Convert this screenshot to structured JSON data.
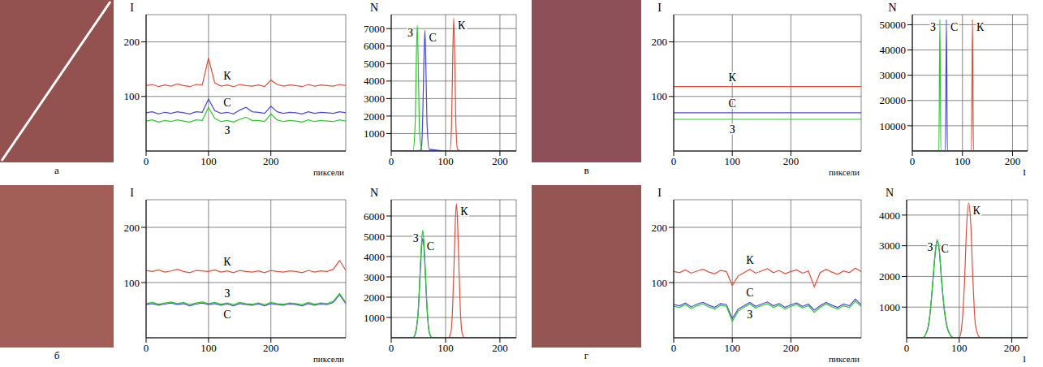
{
  "panel_labels": [
    "а",
    "б",
    "в",
    "г"
  ],
  "chart_data": [
    {
      "type": "line",
      "x_label": "пиксели",
      "y_label": "I",
      "grid": true,
      "xlim": [
        0,
        320
      ],
      "xticks": [
        0,
        100,
        200
      ],
      "ylim": [
        0,
        250
      ],
      "yticks": [
        100,
        200
      ],
      "x": [
        0,
        10,
        20,
        30,
        40,
        50,
        60,
        70,
        80,
        90,
        100,
        110,
        120,
        130,
        140,
        150,
        160,
        170,
        180,
        190,
        200,
        210,
        220,
        230,
        240,
        250,
        260,
        270,
        280,
        290,
        300,
        310,
        320
      ],
      "series": [
        {
          "name": "К",
          "color": "#d9503c",
          "values": [
            120,
            122,
            118,
            121,
            119,
            123,
            120,
            118,
            122,
            121,
            170,
            125,
            119,
            121,
            118,
            122,
            120,
            119,
            121,
            118,
            130,
            122,
            119,
            121,
            120,
            118,
            122,
            119,
            121,
            120,
            119,
            122,
            120
          ]
        },
        {
          "name": "С",
          "color": "#4a4ad0",
          "values": [
            70,
            72,
            68,
            71,
            69,
            72,
            70,
            68,
            72,
            71,
            95,
            74,
            69,
            71,
            68,
            75,
            80,
            72,
            71,
            69,
            82,
            72,
            69,
            71,
            70,
            68,
            72,
            69,
            71,
            70,
            69,
            72,
            70
          ]
        },
        {
          "name": "З",
          "color": "#2ec82e",
          "values": [
            55,
            57,
            53,
            56,
            54,
            57,
            55,
            53,
            57,
            56,
            80,
            60,
            54,
            56,
            53,
            58,
            62,
            56,
            56,
            54,
            68,
            57,
            54,
            56,
            55,
            53,
            57,
            54,
            56,
            55,
            54,
            57,
            55
          ]
        }
      ]
    },
    {
      "type": "line",
      "y_label": "N",
      "grid": true,
      "xlim": [
        0,
        230
      ],
      "xticks": [
        0,
        100,
        200
      ],
      "ylim": [
        0,
        7800
      ],
      "yticks": [
        1000,
        2000,
        3000,
        4000,
        5000,
        6000,
        7000
      ],
      "x": [
        0,
        40,
        44,
        46,
        48,
        50,
        52,
        56,
        58,
        60,
        62,
        64,
        66,
        70,
        108,
        111,
        113,
        115,
        117,
        119,
        122,
        130,
        230
      ],
      "series": [
        {
          "name": "К",
          "color": "#d9503c",
          "values": [
            0,
            0,
            0,
            0,
            0,
            0,
            0,
            0,
            0,
            0,
            0,
            0,
            0,
            0,
            0,
            1500,
            5000,
            7600,
            5000,
            1500,
            100,
            0,
            0
          ]
        },
        {
          "name": "С",
          "color": "#4a4ad0",
          "values": [
            0,
            0,
            0,
            0,
            0,
            0,
            0,
            300,
            2000,
            5000,
            6900,
            4500,
            1500,
            100,
            0,
            0,
            0,
            0,
            0,
            0,
            0,
            0,
            0
          ]
        },
        {
          "name": "З",
          "color": "#2ec82e",
          "values": [
            0,
            0,
            1500,
            5000,
            7200,
            4500,
            1200,
            100,
            0,
            0,
            0,
            0,
            0,
            0,
            0,
            0,
            0,
            0,
            0,
            0,
            0,
            0,
            0
          ]
        }
      ]
    },
    {
      "type": "line",
      "x_label": "пиксели",
      "y_label": "I",
      "grid": true,
      "xlim": [
        0,
        320
      ],
      "xticks": [
        0,
        100,
        200
      ],
      "ylim": [
        0,
        250
      ],
      "yticks": [
        100,
        200
      ],
      "x": [
        0,
        10,
        20,
        30,
        40,
        50,
        60,
        70,
        80,
        90,
        100,
        110,
        120,
        130,
        140,
        150,
        160,
        170,
        180,
        190,
        200,
        210,
        220,
        230,
        240,
        250,
        260,
        270,
        280,
        290,
        300,
        310,
        320
      ],
      "series": [
        {
          "name": "К",
          "color": "#d9503c",
          "values": [
            122,
            120,
            123,
            119,
            121,
            124,
            120,
            118,
            122,
            121,
            120,
            123,
            119,
            121,
            118,
            122,
            120,
            119,
            121,
            118,
            122,
            120,
            119,
            121,
            120,
            118,
            122,
            119,
            121,
            120,
            124,
            140,
            122
          ]
        },
        {
          "name": "С",
          "color": "#4a4ad0",
          "values": [
            60,
            62,
            59,
            61,
            63,
            60,
            62,
            58,
            61,
            63,
            60,
            62,
            59,
            61,
            58,
            62,
            60,
            59,
            61,
            58,
            62,
            60,
            59,
            61,
            60,
            58,
            62,
            59,
            61,
            60,
            64,
            78,
            62
          ]
        },
        {
          "name": "З",
          "color": "#2ec82e",
          "values": [
            62,
            64,
            61,
            63,
            65,
            62,
            64,
            60,
            63,
            65,
            62,
            64,
            61,
            63,
            60,
            64,
            62,
            61,
            63,
            60,
            64,
            62,
            61,
            63,
            62,
            60,
            64,
            61,
            63,
            62,
            66,
            80,
            64
          ]
        }
      ]
    },
    {
      "type": "line",
      "y_label": "N",
      "grid": true,
      "xlim": [
        0,
        230
      ],
      "xticks": [
        0,
        100,
        200
      ],
      "ylim": [
        0,
        6800
      ],
      "yticks": [
        1000,
        2000,
        3000,
        4000,
        5000,
        6000
      ],
      "x": [
        0,
        40,
        45,
        50,
        53,
        56,
        58,
        60,
        63,
        66,
        70,
        75,
        105,
        110,
        113,
        116,
        118,
        120,
        122,
        124,
        127,
        130,
        135,
        230
      ],
      "series": [
        {
          "name": "К",
          "color": "#d9503c",
          "values": [
            0,
            0,
            0,
            0,
            0,
            0,
            0,
            0,
            0,
            0,
            0,
            0,
            0,
            300,
            1500,
            4000,
            5800,
            6600,
            5800,
            4000,
            1500,
            300,
            0,
            0
          ]
        },
        {
          "name": "С",
          "color": "#4a4ad0",
          "values": [
            0,
            0,
            250,
            1400,
            3000,
            4500,
            4900,
            4500,
            3000,
            1400,
            250,
            0,
            0,
            0,
            0,
            0,
            0,
            0,
            0,
            0,
            0,
            0,
            0,
            0
          ]
        },
        {
          "name": "З",
          "color": "#2ec82e",
          "values": [
            0,
            0,
            300,
            1500,
            3200,
            4800,
            5300,
            4800,
            3200,
            1500,
            300,
            0,
            0,
            0,
            0,
            0,
            0,
            0,
            0,
            0,
            0,
            0,
            0,
            0
          ]
        }
      ]
    },
    {
      "type": "line",
      "x_label": "пиксели",
      "y_label": "I",
      "grid": true,
      "xlim": [
        0,
        320
      ],
      "xticks": [
        0,
        100,
        200
      ],
      "ylim": [
        0,
        250
      ],
      "yticks": [
        100,
        200
      ],
      "x": [
        0,
        100,
        200,
        320
      ],
      "series": [
        {
          "name": "К",
          "color": "#d9503c",
          "values": [
            118,
            118,
            118,
            118
          ]
        },
        {
          "name": "С",
          "color": "#4a4ad0",
          "values": [
            70,
            70,
            70,
            70
          ]
        },
        {
          "name": "З",
          "color": "#2ec82e",
          "values": [
            58,
            58,
            58,
            58
          ]
        }
      ]
    },
    {
      "type": "line",
      "x_label": "I",
      "y_label": "N",
      "grid": true,
      "xlim": [
        0,
        230
      ],
      "xticks": [
        0,
        100,
        200
      ],
      "ylim": [
        0,
        54000
      ],
      "yticks": [
        10000,
        20000,
        30000,
        40000,
        50000
      ],
      "x": [
        0,
        53,
        55,
        57,
        66,
        68,
        70,
        118,
        120,
        122,
        230
      ],
      "series": [
        {
          "name": "К",
          "color": "#d9503c",
          "values": [
            0,
            0,
            0,
            0,
            0,
            0,
            0,
            0,
            52000,
            0,
            0
          ]
        },
        {
          "name": "С",
          "color": "#4a4ad0",
          "values": [
            0,
            0,
            0,
            0,
            0,
            52000,
            0,
            0,
            0,
            0,
            0
          ]
        },
        {
          "name": "З",
          "color": "#2ec82e",
          "values": [
            0,
            0,
            52000,
            0,
            0,
            0,
            0,
            0,
            0,
            0,
            0
          ]
        }
      ]
    },
    {
      "type": "line",
      "x_label": "пиксели",
      "y_label": "I",
      "grid": true,
      "xlim": [
        0,
        320
      ],
      "xticks": [
        0,
        100,
        200
      ],
      "ylim": [
        0,
        250
      ],
      "yticks": [
        100,
        200
      ],
      "x": [
        0,
        10,
        20,
        30,
        40,
        50,
        60,
        70,
        80,
        90,
        100,
        110,
        120,
        130,
        140,
        150,
        160,
        170,
        180,
        190,
        200,
        210,
        220,
        230,
        240,
        250,
        260,
        270,
        280,
        290,
        300,
        310,
        320
      ],
      "series": [
        {
          "name": "К",
          "color": "#d9503c",
          "values": [
            120,
            118,
            123,
            117,
            121,
            124,
            119,
            116,
            122,
            120,
            95,
            112,
            118,
            124,
            117,
            121,
            125,
            118,
            122,
            116,
            120,
            123,
            117,
            121,
            92,
            118,
            124,
            119,
            115,
            121,
            118,
            126,
            120
          ]
        },
        {
          "name": "С",
          "color": "#4a4ad0",
          "values": [
            60,
            58,
            63,
            56,
            61,
            64,
            59,
            55,
            62,
            60,
            35,
            52,
            58,
            64,
            57,
            61,
            65,
            58,
            62,
            55,
            60,
            63,
            57,
            61,
            50,
            58,
            64,
            59,
            55,
            61,
            58,
            70,
            60
          ]
        },
        {
          "name": "З",
          "color": "#2ec82e",
          "values": [
            57,
            55,
            60,
            53,
            58,
            61,
            56,
            52,
            59,
            57,
            30,
            48,
            55,
            61,
            54,
            58,
            62,
            55,
            59,
            52,
            57,
            60,
            54,
            58,
            46,
            55,
            61,
            56,
            52,
            58,
            55,
            66,
            57
          ]
        }
      ]
    },
    {
      "type": "line",
      "x_label": "I",
      "y_label": "N",
      "grid": true,
      "xlim": [
        0,
        230
      ],
      "xticks": [
        0,
        100,
        200
      ],
      "ylim": [
        0,
        4500
      ],
      "yticks": [
        1000,
        2000,
        3000,
        4000
      ],
      "x": [
        0,
        30,
        40,
        45,
        50,
        55,
        58,
        62,
        66,
        72,
        80,
        90,
        100,
        105,
        110,
        114,
        118,
        122,
        126,
        131,
        140,
        230
      ],
      "series": [
        {
          "name": "К",
          "color": "#d9503c",
          "values": [
            0,
            0,
            0,
            0,
            0,
            0,
            0,
            0,
            0,
            0,
            0,
            0,
            0,
            400,
            1800,
            3600,
            4400,
            3700,
            1900,
            400,
            0,
            0
          ]
        },
        {
          "name": "С",
          "color": "#4a4ad0",
          "values": [
            0,
            0,
            280,
            850,
            1850,
            2850,
            3150,
            2850,
            1950,
            850,
            180,
            0,
            0,
            0,
            0,
            0,
            0,
            0,
            0,
            0,
            0,
            0
          ]
        },
        {
          "name": "З",
          "color": "#2ec82e",
          "values": [
            0,
            0,
            300,
            900,
            1900,
            2900,
            3200,
            2900,
            2000,
            900,
            200,
            0,
            0,
            0,
            0,
            0,
            0,
            0,
            0,
            0,
            0,
            0
          ]
        }
      ]
    }
  ]
}
